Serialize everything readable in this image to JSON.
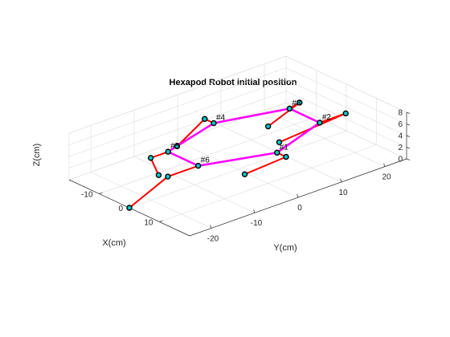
{
  "chart_data": {
    "type": "line3d",
    "title": "Hexapod Robot initial position",
    "xlabel": "X(cm)",
    "ylabel": "Y(cm)",
    "zlabel": "Z(cm)",
    "xlim": [
      -20,
      20
    ],
    "ylim": [
      -25,
      25
    ],
    "zlim": [
      0,
      8
    ],
    "xticks": [
      -10,
      0,
      10
    ],
    "yticks": [
      -20,
      -10,
      0,
      10,
      20
    ],
    "zticks": [
      0,
      2,
      4,
      6,
      8
    ],
    "grid": true,
    "colors": {
      "body": "#ff00ff",
      "legs": "#ff0000",
      "joint_fill": "#00c8c8",
      "joint_edge": "#000000"
    },
    "body": {
      "labels": [
        "#1",
        "#2",
        "#3",
        "#4",
        "#5",
        "#6"
      ],
      "points": [
        {
          "x": 13,
          "y": 0,
          "z": 6
        },
        {
          "x": 7,
          "y": 14,
          "z": 6
        },
        {
          "x": -3,
          "y": 14,
          "z": 6
        },
        {
          "x": -8,
          "y": 0,
          "z": 6
        },
        {
          "x": -3,
          "y": -14,
          "z": 6
        },
        {
          "x": 7,
          "y": -14,
          "z": 6
        }
      ]
    },
    "legs": [
      {
        "name": "#1",
        "points": [
          {
            "x": 13,
            "y": 0,
            "z": 6
          },
          {
            "x": 16,
            "y": 0,
            "z": 6
          },
          {
            "x": 3,
            "y": -0.5,
            "z": 0
          }
        ]
      },
      {
        "name": "#2",
        "points": [
          {
            "x": 7,
            "y": 14,
            "z": 6
          },
          {
            "x": 7,
            "y": 20,
            "z": 6
          },
          {
            "x": -5,
            "y": 13,
            "z": 0
          }
        ]
      },
      {
        "name": "#3",
        "points": [
          {
            "x": -3,
            "y": 14,
            "z": 6
          },
          {
            "x": -4,
            "y": 17,
            "z": 6
          },
          {
            "x": -13,
            "y": 16,
            "z": 0
          }
        ]
      },
      {
        "name": "#4",
        "points": [
          {
            "x": -8,
            "y": 0,
            "z": 6
          },
          {
            "x": -11,
            "y": 0,
            "z": 6
          },
          {
            "x": -18,
            "y": -1.5,
            "z": 0
          }
        ]
      },
      {
        "name": "#5",
        "points": [
          {
            "x": -3,
            "y": -14,
            "z": 6
          },
          {
            "x": -3,
            "y": -18,
            "z": 6
          },
          {
            "x": -9,
            "y": -12,
            "z": 0
          }
        ]
      },
      {
        "name": "#6",
        "points": [
          {
            "x": 7,
            "y": -14,
            "z": 6
          },
          {
            "x": 7,
            "y": -21,
            "z": 6
          },
          {
            "x": 0,
            "y": -25,
            "z": 0
          }
        ]
      }
    ]
  }
}
